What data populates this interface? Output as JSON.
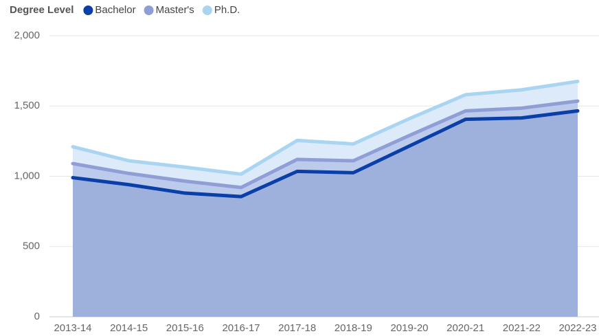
{
  "chart_data": {
    "type": "stacked_area",
    "legend_title": "Degree Level",
    "legend_position": "top-left",
    "categories": [
      "2013-14",
      "2014-15",
      "2015-16",
      "2016-17",
      "2017-18",
      "2018-19",
      "2019-20",
      "2020-21",
      "2021-22",
      "2022-23"
    ],
    "series": [
      {
        "name": "Bachelor",
        "color": "#0a3fa8",
        "fill": "#9db1dc",
        "values": [
          990,
          940,
          880,
          855,
          1035,
          1025,
          1215,
          1405,
          1415,
          1465
        ]
      },
      {
        "name": "Master's",
        "color": "#8f9fd6",
        "fill": "#bccaec",
        "values": [
          100,
          80,
          85,
          65,
          85,
          85,
          75,
          60,
          70,
          70
        ]
      },
      {
        "name": "Ph.D.",
        "color": "#a9d4f2",
        "fill": "#dceaf9",
        "values": [
          120,
          90,
          100,
          95,
          135,
          120,
          120,
          115,
          130,
          140
        ]
      }
    ],
    "ylim": [
      0,
      2000
    ],
    "yticks": [
      0,
      {
        "value": 500,
        "label": "500"
      },
      {
        "value": 1000,
        "label": "1,000"
      },
      {
        "value": 1500,
        "label": "1,500"
      },
      {
        "value": 2000,
        "label": "2,000"
      }
    ],
    "grid": true
  }
}
